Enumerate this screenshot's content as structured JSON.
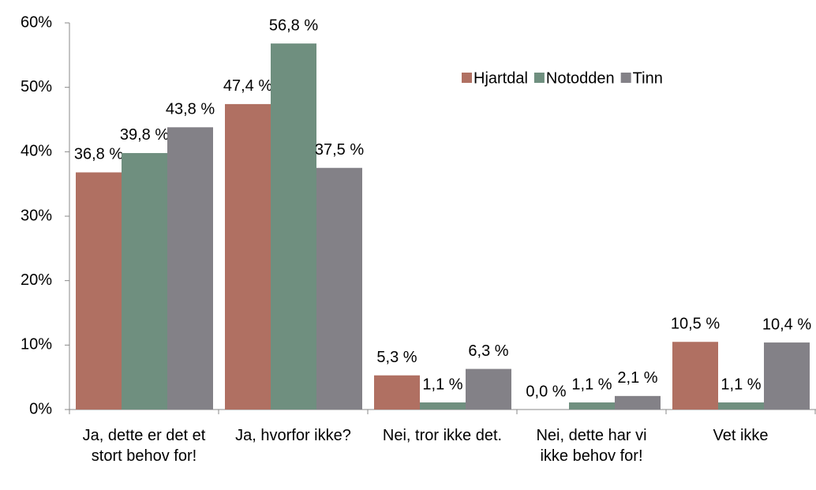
{
  "chart_data": {
    "type": "bar",
    "categories": [
      "Ja, dette er det et stort behov for!",
      "Ja, hvorfor ikke?",
      "Nei, tror ikke det.",
      "Nei, dette har vi ikke behov for!",
      "Vet ikke"
    ],
    "series": [
      {
        "name": "Hjartdal",
        "color": "#b07062",
        "values": [
          36.8,
          47.4,
          5.3,
          0.0,
          10.5
        ],
        "value_labels": [
          "36,8 %",
          "47,4 %",
          "5,3 %",
          "0,0 %",
          "10,5 %"
        ]
      },
      {
        "name": "Notodden",
        "color": "#6f8f7f",
        "values": [
          39.8,
          56.8,
          1.1,
          1.1,
          1.1
        ],
        "value_labels": [
          "39,8 %",
          "56,8 %",
          "1,1 %",
          "1,1 %",
          "1,1 %"
        ]
      },
      {
        "name": "Tinn",
        "color": "#838187",
        "values": [
          43.8,
          37.5,
          6.3,
          2.1,
          10.4
        ],
        "value_labels": [
          "43,8 %",
          "37,5 %",
          "6,3 %",
          "2,1 %",
          "10,4 %"
        ]
      }
    ],
    "ylim": [
      0,
      60
    ],
    "yticks": [
      {
        "value": 0,
        "label": "0%"
      },
      {
        "value": 10,
        "label": "10%"
      },
      {
        "value": 20,
        "label": "20%"
      },
      {
        "value": 30,
        "label": "30%"
      },
      {
        "value": 40,
        "label": "40%"
      },
      {
        "value": 50,
        "label": "50%"
      },
      {
        "value": 60,
        "label": "60%"
      }
    ],
    "legend": "top-right"
  }
}
